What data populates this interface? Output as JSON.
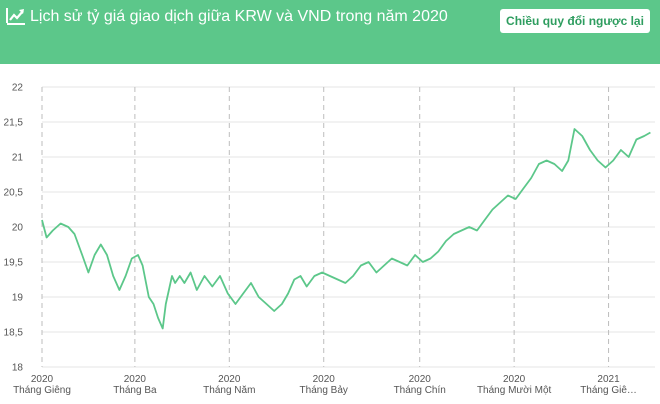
{
  "header": {
    "title": "Lịch sử tỷ giá giao dịch giữa KRW và VND trong năm 2020",
    "swap_label": "Chiều quy đổi ngược lại",
    "icon": "trend-up-icon",
    "background_color": "#5cc78a"
  },
  "chart_data": {
    "type": "line",
    "title": "",
    "xlabel": "",
    "ylabel": "",
    "line_color": "#5cc78a",
    "grid": true,
    "ylim": [
      18,
      22
    ],
    "xlim": [
      "2020-01-01",
      "2021-01-31"
    ],
    "y_ticks": [
      "22",
      "21,5",
      "21",
      "20,5",
      "20",
      "19,5",
      "19",
      "18,5",
      "18"
    ],
    "y_tick_values": [
      22,
      21.5,
      21,
      20.5,
      20,
      19.5,
      19,
      18.5,
      18
    ],
    "x_ticks": [
      {
        "date": "2020-01-01",
        "year": "2020",
        "label": "Tháng Giêng"
      },
      {
        "date": "2020-03-01",
        "year": "2020",
        "label": "Tháng Ba"
      },
      {
        "date": "2020-05-01",
        "year": "2020",
        "label": "Tháng Năm"
      },
      {
        "date": "2020-07-01",
        "year": "2020",
        "label": "Tháng Bảy"
      },
      {
        "date": "2020-09-01",
        "year": "2020",
        "label": "Tháng Chín"
      },
      {
        "date": "2020-11-01",
        "year": "2020",
        "label": "Tháng Mười Một"
      },
      {
        "date": "2021-01-01",
        "year": "2021",
        "label": "Tháng Giê…"
      }
    ],
    "series": [
      {
        "x": [
          "2020-01-01",
          "2020-01-04",
          "2020-01-08",
          "2020-01-13",
          "2020-01-18",
          "2020-01-22",
          "2020-01-27",
          "2020-01-31",
          "2020-02-04",
          "2020-02-08",
          "2020-02-12",
          "2020-02-16",
          "2020-02-20",
          "2020-02-24",
          "2020-02-28",
          "2020-03-03",
          "2020-03-06",
          "2020-03-10",
          "2020-03-13",
          "2020-03-16",
          "2020-03-19",
          "2020-03-21",
          "2020-03-23",
          "2020-03-25",
          "2020-03-27",
          "2020-03-30",
          "2020-04-02",
          "2020-04-06",
          "2020-04-10",
          "2020-04-15",
          "2020-04-20",
          "2020-04-25",
          "2020-04-30",
          "2020-05-05",
          "2020-05-10",
          "2020-05-15",
          "2020-05-20",
          "2020-05-25",
          "2020-05-30",
          "2020-06-04",
          "2020-06-08",
          "2020-06-12",
          "2020-06-16",
          "2020-06-20",
          "2020-06-25",
          "2020-06-30",
          "2020-07-05",
          "2020-07-10",
          "2020-07-15",
          "2020-07-20",
          "2020-07-25",
          "2020-07-30",
          "2020-08-04",
          "2020-08-09",
          "2020-08-14",
          "2020-08-19",
          "2020-08-24",
          "2020-08-29",
          "2020-09-03",
          "2020-09-08",
          "2020-09-13",
          "2020-09-18",
          "2020-09-23",
          "2020-09-28",
          "2020-10-03",
          "2020-10-08",
          "2020-10-13",
          "2020-10-18",
          "2020-10-23",
          "2020-10-28",
          "2020-11-02",
          "2020-11-07",
          "2020-11-12",
          "2020-11-17",
          "2020-11-22",
          "2020-11-27",
          "2020-12-02",
          "2020-12-06",
          "2020-12-10",
          "2020-12-15",
          "2020-12-20",
          "2020-12-25",
          "2020-12-30",
          "2021-01-04",
          "2021-01-09",
          "2021-01-14",
          "2021-01-19",
          "2021-01-24",
          "2021-01-28"
        ],
        "values": [
          20.1,
          19.85,
          19.95,
          20.05,
          20.0,
          19.9,
          19.6,
          19.35,
          19.6,
          19.75,
          19.6,
          19.3,
          19.1,
          19.3,
          19.55,
          19.6,
          19.45,
          19.0,
          18.9,
          18.7,
          18.55,
          18.9,
          19.1,
          19.3,
          19.2,
          19.3,
          19.2,
          19.35,
          19.1,
          19.3,
          19.15,
          19.3,
          19.05,
          18.9,
          19.05,
          19.2,
          19.0,
          18.9,
          18.8,
          18.9,
          19.05,
          19.25,
          19.3,
          19.15,
          19.3,
          19.35,
          19.3,
          19.25,
          19.2,
          19.3,
          19.45,
          19.5,
          19.35,
          19.45,
          19.55,
          19.5,
          19.45,
          19.6,
          19.5,
          19.55,
          19.65,
          19.8,
          19.9,
          19.95,
          20.0,
          19.95,
          20.1,
          20.25,
          20.35,
          20.45,
          20.4,
          20.55,
          20.7,
          20.9,
          20.95,
          20.9,
          20.8,
          20.95,
          21.4,
          21.3,
          21.1,
          20.95,
          20.85,
          20.95,
          21.1,
          21.0,
          21.25,
          21.3,
          21.35
        ]
      }
    ]
  }
}
